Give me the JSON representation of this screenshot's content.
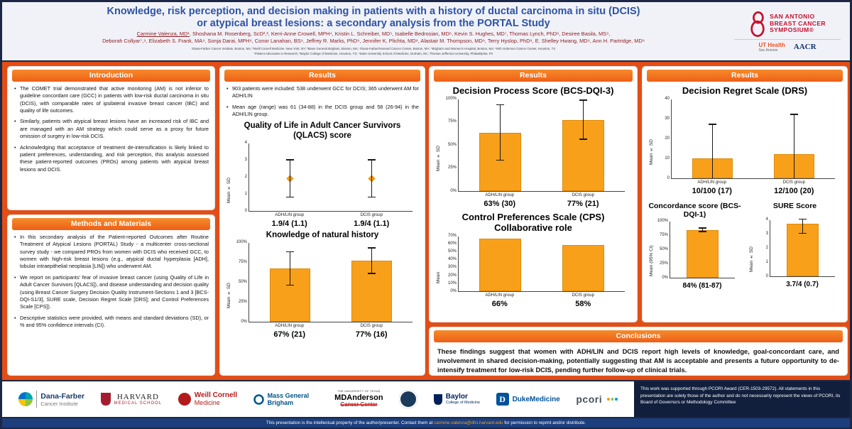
{
  "colors": {
    "poster_bg": "#e24e16",
    "bar_fill": "#f9a01b",
    "title_blue": "#2d53a3",
    "author_red": "#8e1b1e",
    "section_orange": "#f26f21",
    "sabcs_red": "#c8102e"
  },
  "header": {
    "title_line1": "Knowledge, risk perception, and decision making in patients with a history of ductal carcinoma in situ (DCIS)",
    "title_line2": "or atypical breast lesions: a secondary analysis from the PORTAL Study",
    "authors_first": "Carmine Valenza, MD¹",
    "authors_rest_line1": ", Shoshana M. Rosenberg, ScD²,³, Kerri-Anne Crowell, MPH⁴, Kristin L. Schreiber, MD⁵, Isabelle Bedrosian, MD⁶, Kevin S. Hughes, MD⁷, Thomas Lynch, PhD⁸, Desiree Basila, MS⁹,",
    "authors_line2": "Deborah Collyar⁷,⁹, Elizabeth S. Frank, MA⁹, Sonja Darai, MPH⁹, Conor Lanahan, BS⁹, Jeffrey R. Marks, PhD⁹, Jennifer K. Plichta, MD⁹, Alastair M. Thompson, MD⁹, Terry Hyslop, PhD⁹, E. Shelley Hwang, MD⁹, Ann H. Partridge, MD⁹",
    "affiliations_line1": "¹Dana-Farber Cancer Institute, Boston, MA; ²Weill Cornell Medicine, New York, NY; ³Mass General Brigham, Boston, MA; ⁴Dana-Farber/Harvard Cancer Center, Boston, MA; ⁵Brigham and Women's Hospital, Boston, MA; ⁶MD Anderson Cancer Center, Houston, TX",
    "affiliations_line2": "⁷Patient Advocates in Research; ⁸Baylor College of Medicine, Houston, TX; ⁹Duke University School of Medicine, Durham, NC; Thomas Jefferson University, Philadelphia, PA",
    "sabcs": {
      "line1": "SAN ANTONIO",
      "line2": "BREAST CANCER",
      "line3": "SYMPOSIUM®"
    },
    "ut_health": {
      "line1": "UT Health",
      "line2": "San Antonio"
    },
    "aacr": "AACR"
  },
  "sections": {
    "intro": {
      "title": "Introduction",
      "bullets": [
        "The COMET trial demonstrated that active monitoring (AM) is not inferior to guideline concordant care (GCC) in patients with low-risk ductal carcinoma in situ (DCIS), with comparable rates of ipsilateral invasive breast cancer (IBC) and quality of life outcomes.",
        "Similarly, patients with atypical breast lesions have an increased risk of IBC and are managed with an AM strategy which could serve as a proxy for future omission of surgery in low-risk DCIS.",
        "Acknowledging that acceptance of treatment de-intensification is likely linked to patient preferences, understanding, and risk perception, this analysis assessed these patient-reported outcomes (PROs) among patients with atypical breast lesions and DCIS."
      ]
    },
    "methods": {
      "title": "Methods and Materials",
      "bullets": [
        "In this secondary analysis of the Patient-reported Outcomes after Routine Treatment of Atypical Lesions (PORTAL) Study - a multicenter cross-sectional survey study - we compared PROs from women with DCIS who received GCC, to women with high-risk breast lesions (e.g., atypical ductal hyperplasia [ADH], lobular intraepithelial neoplasia [LIN]) who underwent AM.",
        "We report on participants' fear of invasive breast cancer (using Quality of Life in Adult Cancer Survivors [QLACS]), and disease understanding and decision quality (using Breast Cancer Surgery Decision Quality Instrument-Sections 1 and 3 [BCS-DQI-S1/3], SURE scale, Decision Regret Scale [DRS]; and Control Preferences Scale [CPS]).",
        "Descriptive statistics were provided, with means and standard deviations (SD), or % and 95% confidence intervals (CI)."
      ]
    },
    "results2": {
      "title": "Results",
      "bullets": [
        "903 patients were included: 538 underwent GCC for DCIS; 365 underwent AM for ADH/LIN",
        "Mean age (range) was 61 (34-88) in the DCIS group and 58 (26-94) in the ADH/LIN group."
      ]
    },
    "results3": {
      "title": "Results"
    },
    "results4": {
      "title": "Results"
    },
    "conclusions": {
      "title": "Conclusions",
      "text": "These findings suggest that women with ADH/LIN and DCIS report high levels of knowledge, goal-concordant care, and involvement in shared decision-making, potentially suggesting that AM is acceptable and presents a future opportunity to de-intensify treatment for low-risk DCIS, pending further follow-up of clinical trials."
    }
  },
  "charts": {
    "qlacs": {
      "type": "point",
      "title": "Quality of Life in Adult Cancer Survivors (QLACS) score",
      "ylabel": "Mean ± SD",
      "ymin": 0,
      "ymax": 4,
      "yticks": [
        0,
        1,
        2,
        3,
        4
      ],
      "ytick_suffix": "",
      "categories": [
        "ADH/LIN group",
        "DCIS group"
      ],
      "values": [
        1.9,
        1.9
      ],
      "errors": [
        1.1,
        1.1
      ],
      "value_labels": [
        "1.9/4 (1.1)",
        "1.9/4 (1.1)"
      ]
    },
    "knowledge": {
      "type": "bar",
      "title": "Knowledge of natural history",
      "ylabel": "Mean ± SD",
      "ymin": 0,
      "ymax": 100,
      "yticks": [
        0,
        25,
        50,
        75,
        100
      ],
      "ytick_suffix": "%",
      "categories": [
        "ADH/LIN group",
        "DCIS group"
      ],
      "values": [
        67,
        77
      ],
      "errors": [
        21,
        16
      ],
      "value_labels": [
        "67% (21)",
        "77% (16)"
      ]
    },
    "decision_process": {
      "type": "bar",
      "title": "Decision Process Score (BCS-DQI-3)",
      "ylabel": "Mean ± SD",
      "ymin": 0,
      "ymax": 100,
      "yticks": [
        0,
        25,
        50,
        75,
        100
      ],
      "ytick_suffix": "%",
      "categories": [
        "ADH/LIN group",
        "DCIS group"
      ],
      "values": [
        63,
        77
      ],
      "errors": [
        30,
        21
      ],
      "value_labels": [
        "63% (30)",
        "77% (21)"
      ]
    },
    "cps": {
      "type": "bar",
      "title": "Control Preferences Scale (CPS) Collaborative role",
      "ylabel": "Mean",
      "ymin": 0,
      "ymax": 70,
      "yticks": [
        0,
        10,
        20,
        30,
        40,
        50,
        60,
        70
      ],
      "ytick_suffix": "%",
      "categories": [
        "ADH/LIN group",
        "DCIS group"
      ],
      "values": [
        66,
        58
      ],
      "value_labels": [
        "66%",
        "58%"
      ]
    },
    "drs": {
      "type": "bar",
      "title": "Decision Regret Scale (DRS)",
      "ylabel": "Mean ± SD",
      "ymin": 0,
      "ymax": 40,
      "yticks": [
        0,
        10,
        20,
        30,
        40
      ],
      "ytick_suffix": "",
      "categories": [
        "ADH/LIN group",
        "DCIS group"
      ],
      "values": [
        10,
        12
      ],
      "errors": [
        17,
        20
      ],
      "value_labels": [
        "10/100 (17)",
        "12/100 (20)"
      ]
    },
    "concordance": {
      "type": "bar",
      "title": "Concordance score (BCS-DQI-1)",
      "ylabel": "Mean (95% CI)",
      "ymin": 0,
      "ymax": 100,
      "yticks": [
        0,
        25,
        50,
        75,
        100
      ],
      "ytick_suffix": "%",
      "categories": [
        ""
      ],
      "values": [
        84
      ],
      "errors": [
        3
      ],
      "value_labels": [
        "84% (81-87)"
      ]
    },
    "sure": {
      "type": "bar",
      "title": "SURE Score",
      "ylabel": "Mean ± SD",
      "ymin": 0,
      "ymax": 4,
      "yticks": [
        0,
        1,
        2,
        3,
        4
      ],
      "ytick_suffix": "",
      "categories": [
        ""
      ],
      "values": [
        3.7
      ],
      "errors": [
        0.7
      ],
      "value_labels": [
        "3.7/4 (0.7)"
      ]
    }
  },
  "footer": {
    "support_note": "This work was supported through PCORI Award (CER-1503-29572). All statements in this presentation are solely those of the author and do not necessarily represent the views of PCORI, its Board of Governors or Methodology Committee",
    "bottom_prefix": "This presentation is the intellectual property of the author/presenter. Contact them at ",
    "bottom_email": "carmine.valenza@dfci.harvard.edu",
    "bottom_suffix": " for permission to reprint and/or distribute.",
    "logos": {
      "dana_farber": {
        "line1": "Dana-Farber",
        "line2": "Cancer Institute"
      },
      "harvard": {
        "line1": "HARVARD",
        "line2": "MEDICAL SCHOOL"
      },
      "weill": {
        "line1": "Weill Cornell",
        "line2": "Medicine"
      },
      "mgb": "Mass General Brigham",
      "mda": {
        "line0": "THE UNIVERSITY OF TEXAS",
        "line1": "MDAnderson",
        "line2": "Cancer Center"
      },
      "baylor": {
        "line1": "Baylor",
        "line2": "College of Medicine"
      },
      "duke": {
        "d": "D",
        "text": "DukeMedicine"
      },
      "pcori": "pcori"
    }
  }
}
